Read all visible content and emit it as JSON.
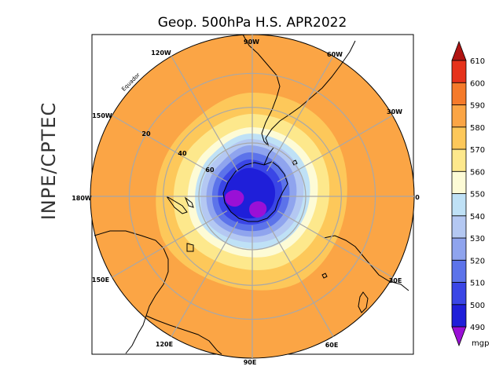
{
  "title": "Geop. 500hPa H.S. APR2022",
  "side_label": "INPE/CPTEC",
  "equator_label": "Equador",
  "longitude_labels": [
    "90W",
    "60W",
    "30W",
    "0",
    "30E",
    "60E",
    "90E",
    "120E",
    "150E",
    "180W",
    "150W",
    "120W"
  ],
  "latitude_labels": [
    "20",
    "40",
    "60"
  ],
  "colorbar": {
    "unit": "mgp",
    "levels": [
      490,
      500,
      510,
      520,
      530,
      540,
      550,
      560,
      570,
      580,
      590,
      600,
      610
    ],
    "colors": [
      "#9a10d6",
      "#1f1fd9",
      "#3a46e6",
      "#5c73ea",
      "#8fa4ee",
      "#b4c8f2",
      "#bfe1f6",
      "#fdfbd6",
      "#fde88c",
      "#fdc85a",
      "#fba545",
      "#f57a2a",
      "#e6321b",
      "#b01412"
    ]
  },
  "colors": {
    "ocean_base": "#fba545",
    "land": "#000000",
    "grid": "#a8a8a8"
  }
}
